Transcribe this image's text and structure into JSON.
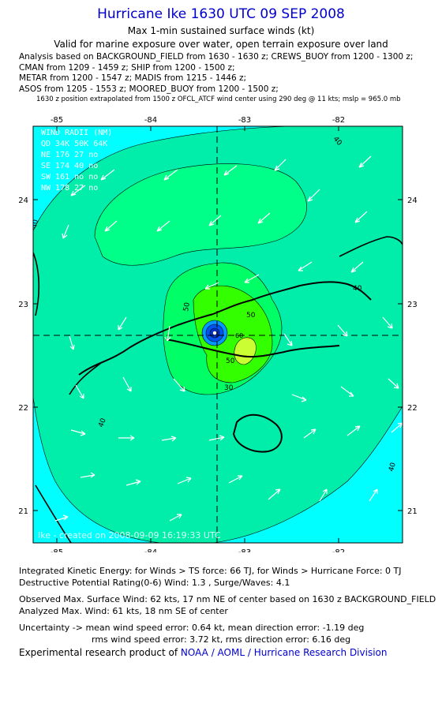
{
  "header": {
    "title": "Hurricane Ike 1630 UTC 09 SEP 2008",
    "subtitle": "Max 1-min sustained surface winds (kt)",
    "validity": "Valid for marine exposure over water, open terrain exposure over land",
    "analysis_lines": [
      "Analysis based on  BACKGROUND_FIELD from 1630 - 1630 z;  CREWS_BUOY from 1200 - 1300 z;",
      "CMAN from 1209 - 1459 z;  SHIP from 1200 - 1500 z;",
      "METAR from 1200 - 1547 z;  MADIS from 1215 - 1446 z;",
      "ASOS from 1205 - 1553 z;  MOORED_BUOY from 1200 - 1500 z;"
    ],
    "position_note": "1630 z position extrapolated from 1500 z OFCL_ATCF wind center using 290 deg @ 11 kts; mslp = 965.0 mb"
  },
  "map": {
    "lon_labels": [
      "-85",
      "-84",
      "-83",
      "-82"
    ],
    "lat_labels": [
      "24",
      "23",
      "22",
      "21"
    ],
    "wind_radii": {
      "title": "WIND RADII (NM)",
      "header": "QD  34K  50K  64K",
      "rows": [
        {
          "qd": "NE",
          "k34": "176",
          "k50": "27",
          "k64": "no"
        },
        {
          "qd": "SE",
          "k34": "174",
          "k50": "40",
          "k64": "no"
        },
        {
          "qd": "SW",
          "k34": "161",
          "k50": "no",
          "k64": "no"
        },
        {
          "qd": "NW",
          "k34": "178",
          "k50": "27",
          "k64": "no"
        }
      ]
    },
    "contour_labels": [
      "50",
      "40",
      "40",
      "40",
      "50",
      "60",
      "40",
      "30",
      "50",
      "40"
    ],
    "watermark": "Ike - created on 2008-09-09 16:19:33 UTC",
    "colors": {
      "ocean": "#00ffff",
      "light_green": "#00eeaa",
      "mid_green": "#00ff66",
      "bright_green": "#33ff00",
      "core_yellow": "#ccff33",
      "eye": "#0033cc"
    }
  },
  "footer": {
    "ike_line1": "Integrated Kinetic Energy:  for Winds > TS force: 66 TJ,  for Winds > Hurricane Force: 0 TJ",
    "ike_line2": "Destructive Potential Rating(0-6)   Wind: 1.3 , Surge/Waves: 4.1",
    "obs_line1": "Observed Max. Surface Wind: 62 kts, 17 nm NE of center based on 1630 z BACKGROUND_FIELD",
    "obs_line2": "Analyzed Max. Wind: 61 kts, 18 nm SE of center",
    "unc_line1": "Uncertainty -> mean wind speed error: 0.64 kt,   mean direction error:  -1.19 deg",
    "unc_line2": "rms wind speed error: 3.72 kt,   rms direction error: 6.16 deg",
    "credit_prefix": "Experimental research product of ",
    "credit_org": "NOAA / AOML / Hurricane Research Division"
  }
}
